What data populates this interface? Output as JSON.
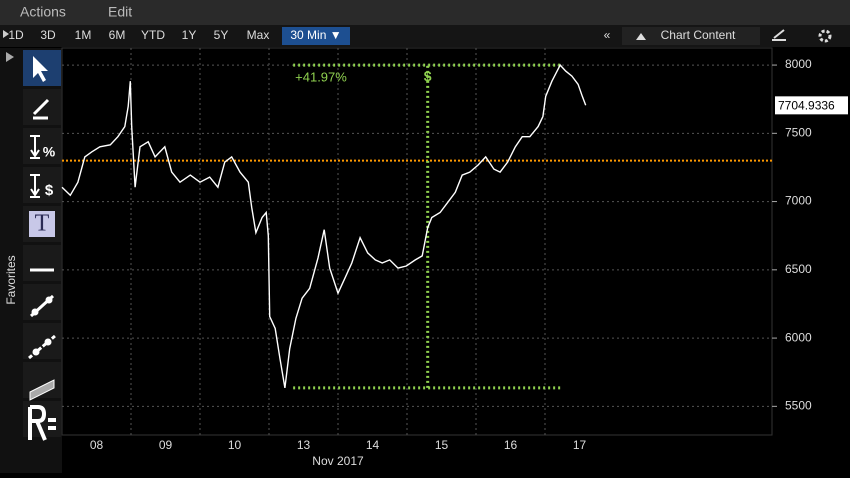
{
  "menu": [
    "Actions",
    "Edit"
  ],
  "periods": [
    "1D",
    "3D",
    "1M",
    "6M",
    "YTD",
    "1Y",
    "5Y",
    "Max"
  ],
  "interval": "30 Min ▼",
  "collapse": "«",
  "chart_content": "Chart Content",
  "sidebar": {
    "label": "Favorites",
    "tools": [
      "%",
      "$",
      "T"
    ]
  },
  "chart_data": {
    "type": "line",
    "x_axis_label": "Nov 2017",
    "color": "#ffffff",
    "x": [
      0.0,
      0.12,
      0.23,
      0.33,
      0.43,
      0.55,
      0.7,
      0.81,
      0.91,
      0.96,
      0.99,
      1.01,
      1.06,
      1.13,
      1.25,
      1.35,
      1.49,
      1.59,
      1.71,
      1.86,
      2.0,
      2.14,
      2.26,
      2.36,
      2.46,
      2.58,
      2.7,
      2.75,
      2.81,
      2.9,
      2.96,
      2.99,
      3.01,
      3.09,
      3.16,
      3.23,
      3.3,
      3.39,
      3.48,
      3.59,
      3.71,
      3.8,
      3.88,
      4.0,
      4.1,
      4.2,
      4.32,
      4.43,
      4.54,
      4.64,
      4.75,
      4.87,
      4.99,
      5.12,
      5.22,
      5.3,
      5.36,
      5.48,
      5.59,
      5.7,
      5.8,
      5.91,
      6.03,
      6.14,
      6.26,
      6.35,
      6.46,
      6.57,
      6.67,
      6.78,
      6.9,
      6.97,
      7.01,
      7.1,
      7.22,
      7.3,
      7.39,
      7.48,
      7.54,
      7.59
    ],
    "values": [
      7105,
      7046,
      7142,
      7327,
      7364,
      7401,
      7416,
      7475,
      7549,
      7697,
      7882,
      7549,
      7105,
      7401,
      7438,
      7327,
      7401,
      7216,
      7142,
      7194,
      7142,
      7179,
      7105,
      7290,
      7327,
      7216,
      7142,
      6957,
      6772,
      6883,
      6920,
      6750,
      6158,
      6070,
      5848,
      5635,
      5922,
      6144,
      6292,
      6365,
      6587,
      6794,
      6513,
      6329,
      6439,
      6550,
      6735,
      6624,
      6573,
      6550,
      6573,
      6513,
      6528,
      6573,
      6602,
      6809,
      6883,
      6920,
      6994,
      7068,
      7194,
      7216,
      7268,
      7327,
      7238,
      7216,
      7290,
      7401,
      7475,
      7475,
      7549,
      7623,
      7771,
      7882,
      8000,
      7956,
      7919,
      7859,
      7771,
      7705
    ],
    "xlim": [
      0,
      10.29
    ],
    "ylim": [
      5290,
      8125
    ],
    "xticks": [
      {
        "value": 0.5,
        "label": "08"
      },
      {
        "value": 1.5,
        "label": "09"
      },
      {
        "value": 2.5,
        "label": "10"
      },
      {
        "value": 3.5,
        "label": "13"
      },
      {
        "value": 4.5,
        "label": "14"
      },
      {
        "value": 5.5,
        "label": "15"
      },
      {
        "value": 6.5,
        "label": "16"
      },
      {
        "value": 7.5,
        "label": "17"
      }
    ],
    "xgrid": [
      1,
      2,
      3,
      4,
      5,
      6,
      7
    ],
    "yticks": [
      5500,
      6000,
      6500,
      7000,
      7500,
      8000
    ],
    "grid": true,
    "last_price": 7704.9336,
    "reference_line": {
      "value": 7300,
      "color": "#ff9900"
    },
    "annotation": {
      "label": "+41.97%",
      "symbol": "$",
      "x": [
        3.35,
        7.22
      ],
      "x_mid": 5.3,
      "low": 5635,
      "high": 8000,
      "color": "#8fd14f"
    }
  }
}
